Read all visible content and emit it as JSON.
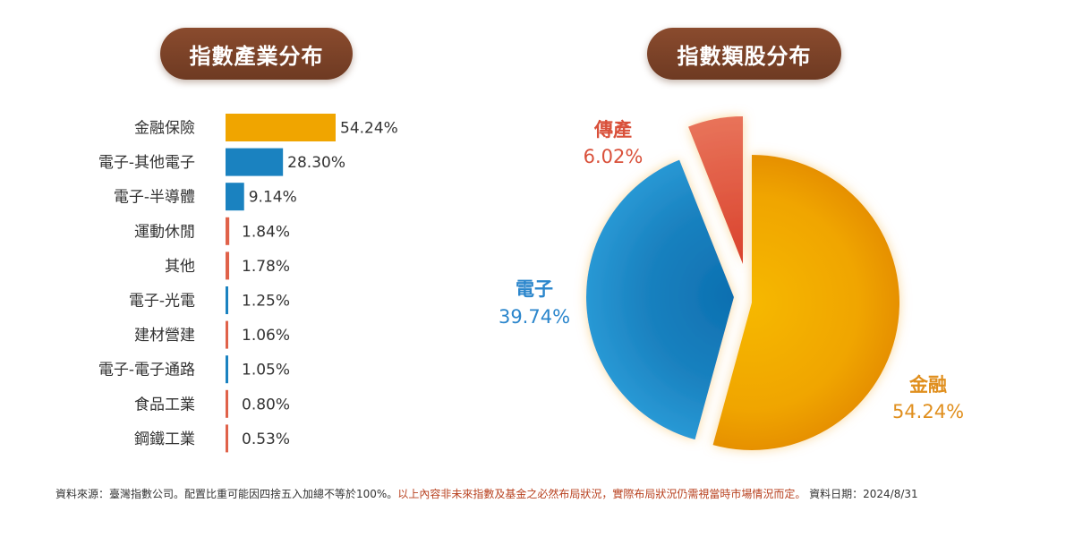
{
  "titles": {
    "industry": "指數產業分布",
    "stock_type": "指數類股分布"
  },
  "colors": {
    "finance": "#f0a500",
    "electronics": "#1a82c0",
    "traditional": "#e0624a",
    "text_dark": "#333333",
    "finance_label": "#e08f1e",
    "electronics_label": "#2b86cc",
    "traditional_label": "#d9503a"
  },
  "chart_data": [
    {
      "type": "bar",
      "orientation": "horizontal",
      "title": "指數產業分布",
      "categories": [
        "金融保險",
        "電子-其他電子",
        "電子-半導體",
        "運動休閒",
        "其他",
        "電子-光電",
        "建材營建",
        "電子-電子通路",
        "食品工業",
        "鋼鐵工業"
      ],
      "values": [
        54.24,
        28.3,
        9.14,
        1.84,
        1.78,
        1.25,
        1.06,
        1.05,
        0.8,
        0.53
      ],
      "value_labels": [
        "54.24%",
        "28.30%",
        "9.14%",
        "1.84%",
        "1.78%",
        "1.25%",
        "1.06%",
        "1.05%",
        "0.80%",
        "0.53%"
      ],
      "bar_colors": [
        "#f0a500",
        "#1a82c0",
        "#1a82c0",
        "#e0624a",
        "#e0624a",
        "#1a82c0",
        "#e0624a",
        "#1a82c0",
        "#e0624a",
        "#e0624a"
      ],
      "xlim": [
        0,
        54.24
      ]
    },
    {
      "type": "pie",
      "title": "指數類股分布",
      "slices": [
        {
          "name": "金融",
          "value": 54.24,
          "label": "54.24%",
          "color": "#f0a500"
        },
        {
          "name": "電子",
          "value": 39.74,
          "label": "39.74%",
          "color": "#1a82c0"
        },
        {
          "name": "傳產",
          "value": 6.02,
          "label": "6.02%",
          "color": "#e0624a"
        }
      ]
    }
  ],
  "footer": {
    "source": "資料來源：臺灣指數公司。配置比重可能因四捨五入加總不等於100%。",
    "disclaimer": "以上內容非未來指數及基金之必然布局狀況，實際布局狀況仍需視當時市場情況而定。",
    "date": " 資料日期：2024/8/31"
  }
}
